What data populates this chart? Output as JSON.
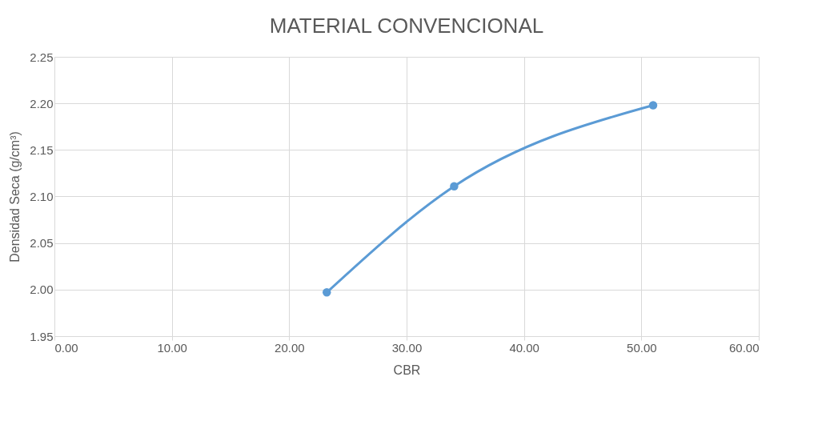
{
  "chart_data": {
    "type": "line",
    "title": "MATERIAL CONVENCIONAL",
    "xlabel": "CBR",
    "ylabel": "Densidad Seca (g/cm³)",
    "x": [
      23.2,
      34.05,
      51.0
    ],
    "series": [
      {
        "color": "#5b9bd5",
        "values": [
          1.997,
          2.111,
          2.198
        ]
      }
    ],
    "xlim": [
      0,
      60
    ],
    "xticks": [
      {
        "value": 0,
        "label": "0.00"
      },
      {
        "value": 10,
        "label": "10.00"
      },
      {
        "value": 20,
        "label": "20.00"
      },
      {
        "value": 30,
        "label": "30.00"
      },
      {
        "value": 40,
        "label": "40.00"
      },
      {
        "value": 50,
        "label": "50.00"
      },
      {
        "value": 60,
        "label": "60.00"
      }
    ],
    "ylim": [
      1.95,
      2.25
    ],
    "yticks": [
      1.95,
      {
        "value": 2.0,
        "label": "2.00"
      },
      2.05,
      {
        "value": 2.1,
        "label": "2.10"
      },
      2.15,
      {
        "value": 2.2,
        "label": "2.20"
      },
      2.25
    ],
    "grid": true,
    "marker": "circle",
    "line_style": "solid"
  }
}
